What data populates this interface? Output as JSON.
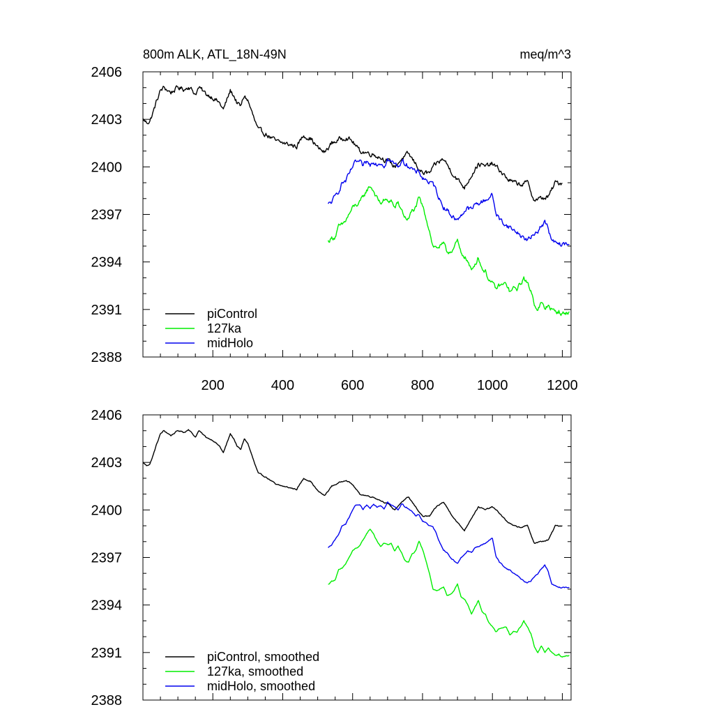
{
  "chart_data": [
    {
      "type": "line",
      "title_left": "800m ALK, ATL_18N-49N",
      "title_right": "meq/m^3",
      "xlabel": "",
      "ylabel": "",
      "xlim": [
        0,
        1225
      ],
      "ylim": [
        2388,
        2406
      ],
      "x_ticks": [
        200,
        400,
        600,
        800,
        1000,
        1200
      ],
      "x_tick_labels": [
        "200",
        "400",
        "600",
        "800",
        "1000",
        "1200"
      ],
      "y_ticks": [
        2388,
        2391,
        2394,
        2397,
        2400,
        2403,
        2406
      ],
      "y_tick_labels": [
        "2388",
        "2391",
        "2394",
        "2397",
        "2400",
        "2403",
        "2406"
      ],
      "show_x_tick_labels": true,
      "legend": [
        {
          "label": "piControl",
          "color": "#000000"
        },
        {
          "label": "127ka",
          "color": "#00ee00"
        },
        {
          "label": "midHolo",
          "color": "#0000ee"
        }
      ],
      "noise": 0.25,
      "series": [
        {
          "name": "piControl",
          "color": "#000000",
          "x": [
            0,
            10,
            20,
            30,
            40,
            50,
            60,
            80,
            100,
            120,
            130,
            150,
            160,
            180,
            200,
            220,
            230,
            250,
            260,
            270,
            280,
            290,
            300,
            320,
            330,
            350,
            370,
            380,
            400,
            420,
            440,
            460,
            480,
            500,
            520,
            540,
            560,
            580,
            600,
            620,
            640,
            660,
            680,
            700,
            720,
            740,
            760,
            780,
            800,
            820,
            840,
            860,
            880,
            900,
            920,
            940,
            960,
            980,
            1000,
            1020,
            1040,
            1060,
            1080,
            1100,
            1120,
            1140,
            1160,
            1180,
            1200
          ],
          "y": [
            2403,
            2402.8,
            2402.9,
            2403.5,
            2404.2,
            2404.8,
            2405.0,
            2404.7,
            2405.0,
            2404.9,
            2405.1,
            2404.6,
            2405.0,
            2404.6,
            2404.4,
            2404.0,
            2403.6,
            2404.8,
            2404.5,
            2404.0,
            2403.8,
            2404.5,
            2404.2,
            2402.9,
            2402.3,
            2402.1,
            2401.8,
            2401.6,
            2401.5,
            2401.4,
            2401.3,
            2402.0,
            2401.8,
            2401.2,
            2400.9,
            2401.5,
            2401.7,
            2401.9,
            2401.6,
            2401.0,
            2400.9,
            2400.8,
            2400.6,
            2400.4,
            2400.0,
            2400.5,
            2400.8,
            2400.2,
            2399.6,
            2399.6,
            2400.2,
            2400.5,
            2399.8,
            2399.2,
            2398.7,
            2399.5,
            2400.2,
            2400.0,
            2400.2,
            2399.8,
            2399.3,
            2399.0,
            2398.9,
            2399.0,
            2397.9,
            2398.0,
            2398.1,
            2399.0,
            2399.0
          ]
        },
        {
          "name": "127ka",
          "color": "#00ee00",
          "x": [
            530,
            540,
            550,
            560,
            570,
            580,
            590,
            600,
            610,
            620,
            630,
            640,
            650,
            660,
            670,
            680,
            690,
            700,
            710,
            720,
            730,
            740,
            750,
            760,
            770,
            780,
            790,
            800,
            810,
            820,
            830,
            840,
            850,
            860,
            870,
            880,
            890,
            900,
            910,
            920,
            930,
            940,
            950,
            960,
            970,
            980,
            990,
            1000,
            1010,
            1020,
            1040,
            1050,
            1060,
            1070,
            1080,
            1090,
            1100,
            1110,
            1120,
            1130,
            1140,
            1150,
            1160,
            1170,
            1180,
            1190,
            1200,
            1210,
            1220
          ],
          "y": [
            2395.3,
            2395.5,
            2395.6,
            2396.2,
            2396.3,
            2396.6,
            2397.0,
            2397.4,
            2397.6,
            2397.7,
            2398.1,
            2398.5,
            2398.8,
            2398.5,
            2398.0,
            2397.7,
            2397.9,
            2397.8,
            2397.9,
            2397.4,
            2397.7,
            2397.3,
            2396.8,
            2396.7,
            2397.2,
            2397.4,
            2398.0,
            2397.5,
            2396.8,
            2396.0,
            2395.0,
            2394.9,
            2395.0,
            2395.1,
            2394.6,
            2394.7,
            2394.9,
            2395.3,
            2394.5,
            2394.4,
            2394.0,
            2393.4,
            2393.9,
            2394.3,
            2393.6,
            2393.4,
            2392.9,
            2392.6,
            2392.3,
            2392.5,
            2392.6,
            2392.1,
            2392.3,
            2392.3,
            2392.6,
            2393.0,
            2392.6,
            2392.2,
            2391.4,
            2391.0,
            2391.4,
            2391.0,
            2391.3,
            2391.0,
            2390.8,
            2390.9,
            2390.7,
            2390.8,
            2390.8
          ]
        },
        {
          "name": "midHolo",
          "color": "#0000ee",
          "x": [
            530,
            540,
            550,
            560,
            570,
            580,
            590,
            600,
            610,
            620,
            630,
            640,
            650,
            660,
            670,
            680,
            690,
            700,
            710,
            720,
            730,
            740,
            750,
            760,
            770,
            780,
            790,
            800,
            810,
            820,
            830,
            840,
            850,
            860,
            870,
            880,
            890,
            900,
            910,
            920,
            930,
            940,
            950,
            960,
            970,
            980,
            990,
            1000,
            1010,
            1020,
            1030,
            1040,
            1050,
            1060,
            1070,
            1080,
            1090,
            1100,
            1110,
            1120,
            1130,
            1140,
            1150,
            1160,
            1170,
            1180,
            1190,
            1200,
            1210,
            1220
          ],
          "y": [
            2397.6,
            2397.8,
            2398.1,
            2398.5,
            2399.0,
            2399.1,
            2399.5,
            2400.0,
            2400.3,
            2400.3,
            2400.0,
            2400.3,
            2400.1,
            2400.4,
            2400.2,
            2400.3,
            2400.1,
            2400.5,
            2400.3,
            2400.2,
            2400.0,
            2400.4,
            2400.2,
            2400.1,
            2399.9,
            2399.6,
            2399.7,
            2399.3,
            2399.2,
            2399.0,
            2398.9,
            2398.5,
            2397.9,
            2397.5,
            2397.3,
            2397.0,
            2396.8,
            2396.6,
            2397.0,
            2397.2,
            2397.4,
            2397.3,
            2397.6,
            2397.7,
            2397.8,
            2397.9,
            2398.1,
            2398.2,
            2397.1,
            2396.7,
            2396.5,
            2396.3,
            2396.2,
            2396.0,
            2395.9,
            2395.7,
            2395.5,
            2395.4,
            2395.5,
            2395.8,
            2396.0,
            2396.3,
            2396.5,
            2396.1,
            2395.3,
            2395.2,
            2395.1,
            2395.1,
            2395.1,
            2395.1
          ]
        }
      ]
    },
    {
      "type": "line",
      "title_left": "",
      "title_right": "",
      "xlabel": "",
      "ylabel": "",
      "xlim": [
        0,
        1225
      ],
      "ylim": [
        2388,
        2406
      ],
      "x_ticks": [
        200,
        400,
        600,
        800,
        1000,
        1200
      ],
      "x_tick_labels": [],
      "y_ticks": [
        2388,
        2391,
        2394,
        2397,
        2400,
        2403,
        2406
      ],
      "y_tick_labels": [
        "2388",
        "2391",
        "2394",
        "2397",
        "2400",
        "2403",
        "2406"
      ],
      "show_x_tick_labels": false,
      "legend": [
        {
          "label": "piControl, smoothed",
          "color": "#000000"
        },
        {
          "label": "127ka, smoothed",
          "color": "#00ee00"
        },
        {
          "label": "midHolo, smoothed",
          "color": "#0000ee"
        }
      ],
      "noise": 0.06,
      "series_ref": "same as panel 1 (smoothed)"
    }
  ]
}
